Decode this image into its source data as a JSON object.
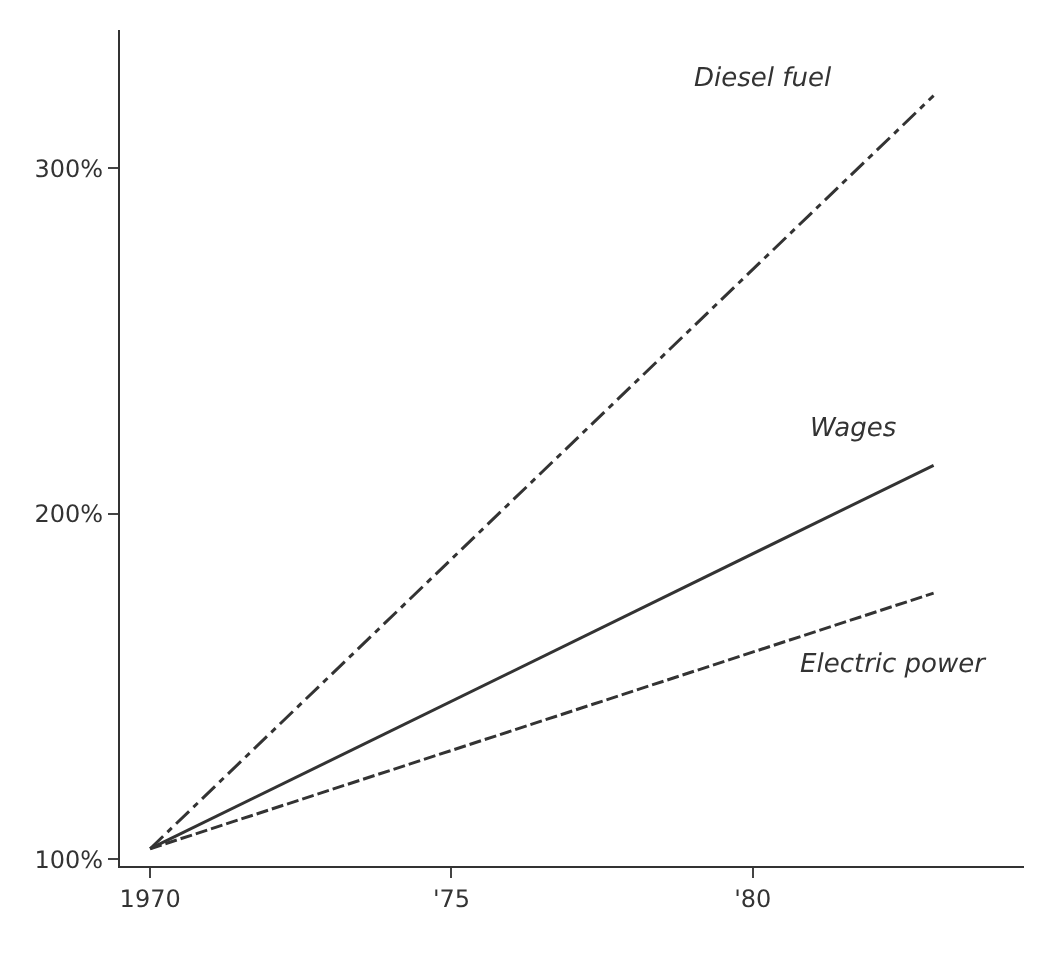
{
  "chart_data": {
    "type": "line",
    "x": [
      1970,
      1983
    ],
    "series": [
      {
        "name": "Diesel fuel",
        "color": "#333333",
        "values": [
          103,
          321
        ],
        "line_style": "dashdot"
      },
      {
        "name": "Wages",
        "color": "#333333",
        "values": [
          103,
          214
        ],
        "line_style": "solid"
      },
      {
        "name": "Electric power",
        "color": "#333333",
        "values": [
          103,
          177
        ],
        "line_style": "dashed"
      }
    ],
    "xlim": [
      1969.5,
      1984.5
    ],
    "xticks": [
      {
        "value": 1970,
        "label": "1970"
      },
      {
        "value": 1975,
        "label": "'75"
      },
      {
        "value": 1980,
        "label": "'80"
      }
    ],
    "ylim": [
      98,
      340
    ],
    "yticks": [
      {
        "value": 100,
        "label": "100%"
      },
      {
        "value": 200,
        "label": "200%"
      },
      {
        "value": 300,
        "label": "300%"
      }
    ],
    "legend": false,
    "marker": "none"
  }
}
